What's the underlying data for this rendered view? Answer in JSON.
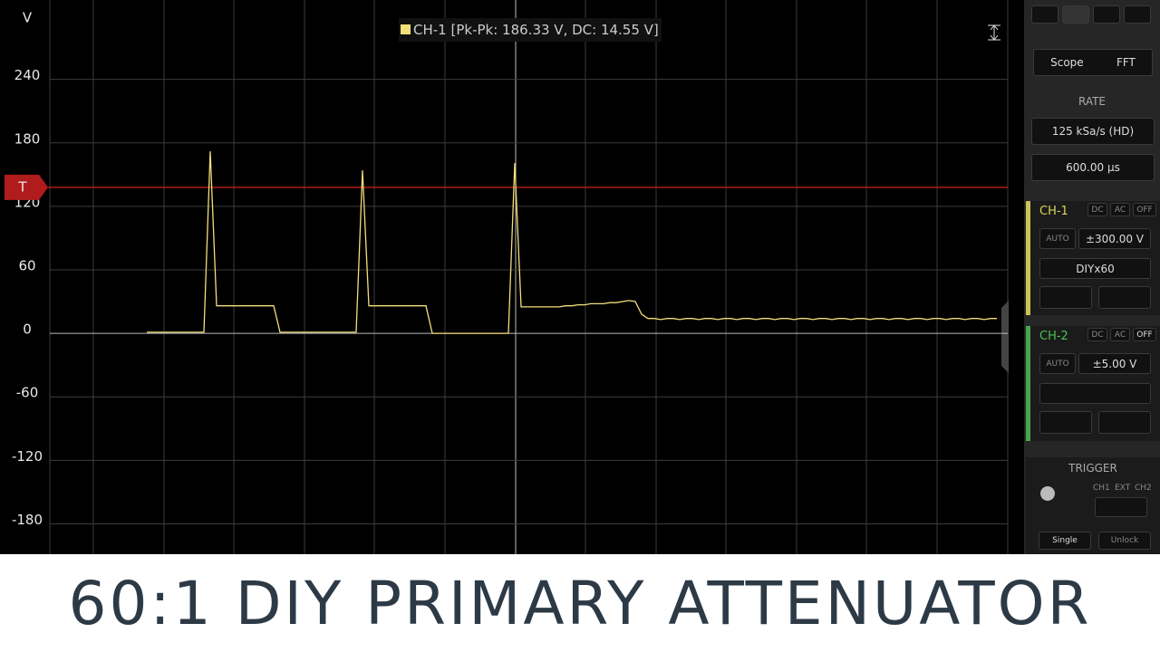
{
  "chart_data": {
    "type": "line",
    "y_label": "V",
    "ylim": [
      -207,
      315
    ],
    "yticks": [
      -180,
      -120,
      -60,
      0,
      60,
      120,
      180,
      240
    ],
    "grid": true,
    "trigger": {
      "label": "T",
      "level": 138,
      "color": "#b01c1c"
    },
    "series": [
      {
        "name": "CH-1",
        "measurement": "[Pk-Pk: 186.33 V, DC: 14.55 V]",
        "color": "#f2df7a",
        "values": [
          1,
          1,
          1,
          1,
          1,
          1,
          1,
          1,
          1,
          1,
          172,
          26,
          26,
          26,
          26,
          26,
          26,
          26,
          26,
          26,
          26,
          1,
          1,
          1,
          1,
          1,
          1,
          1,
          1,
          1,
          1,
          1,
          1,
          1,
          154,
          26,
          26,
          26,
          26,
          26,
          26,
          26,
          26,
          26,
          26,
          0,
          0,
          0,
          0,
          0,
          0,
          0,
          0,
          0,
          0,
          0,
          0,
          0,
          161,
          25,
          25,
          25,
          25,
          25,
          25,
          25,
          26,
          26,
          27,
          27,
          28,
          28,
          28,
          29,
          29,
          30,
          31,
          30,
          18,
          14,
          14,
          13,
          14,
          14,
          13,
          14,
          14,
          13,
          14,
          14,
          13,
          14,
          14,
          13,
          14,
          14,
          13,
          14,
          14,
          13,
          14,
          14,
          13,
          14,
          14,
          13,
          14,
          14,
          13,
          14,
          14,
          13,
          14,
          14,
          13,
          14,
          14,
          13,
          14,
          14,
          13,
          14,
          14,
          13,
          14,
          14,
          13,
          14,
          14,
          13,
          14,
          14,
          13,
          14,
          14
        ]
      }
    ]
  },
  "panel": {
    "mode": [
      "Scope",
      "FFT"
    ],
    "rate_title": "RATE",
    "rate": "125 kSa/s (HD)",
    "timebase": "600.00 µs",
    "ch1": {
      "name": "CH-1",
      "coupling": [
        "DC",
        "AC",
        "OFF"
      ],
      "auto": "AUTO",
      "range": "±300.00 V",
      "probe": "DIYx60"
    },
    "ch2": {
      "name": "CH-2",
      "coupling": [
        "DC",
        "AC",
        "OFF"
      ],
      "auto": "AUTO",
      "range": "±5.00 V"
    },
    "trigger": {
      "title": "TRIGGER",
      "sources": [
        "CH1",
        "EXT",
        "CH2"
      ],
      "single": "Single",
      "unlock": "Unlock"
    }
  },
  "banner": {
    "title": "60:1 DIY PRIMARY ATTENUATOR"
  }
}
